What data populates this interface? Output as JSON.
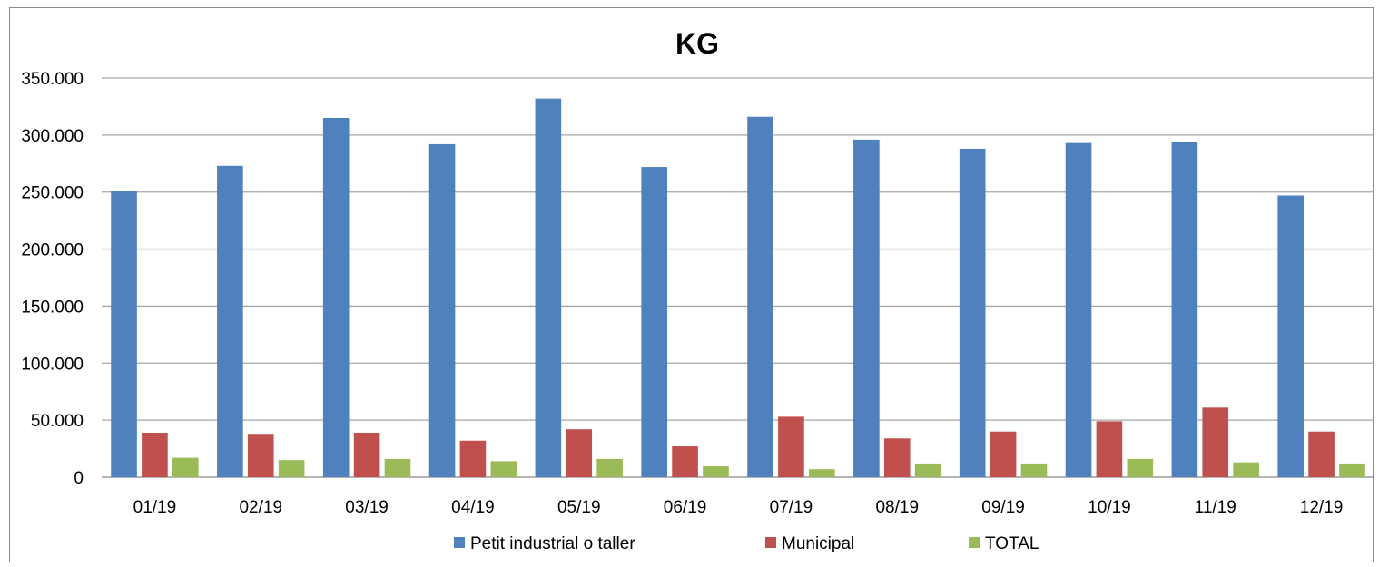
{
  "chart_data": {
    "type": "bar",
    "title": "KG",
    "xlabel": "",
    "ylabel": "",
    "categories": [
      "01/19",
      "02/19",
      "03/19",
      "04/19",
      "05/19",
      "06/19",
      "07/19",
      "08/19",
      "09/19",
      "10/19",
      "11/19",
      "12/19"
    ],
    "series": [
      {
        "name": "Petit industrial o taller",
        "color": "#4f81bd",
        "values": [
          251000,
          273000,
          315000,
          292000,
          332000,
          272000,
          316000,
          296000,
          288000,
          293000,
          294000,
          247000
        ]
      },
      {
        "name": "Municipal",
        "color": "#c0504d",
        "values": [
          39000,
          38000,
          39000,
          32000,
          42000,
          27000,
          53000,
          34000,
          40000,
          49000,
          61000,
          40000
        ]
      },
      {
        "name": "TOTAL",
        "color": "#9bbb59",
        "values": [
          17000,
          15000,
          16000,
          14000,
          16000,
          9500,
          7000,
          12000,
          12000,
          16000,
          13000,
          12000
        ]
      }
    ],
    "ylim": [
      0,
      350000
    ],
    "yticks": [
      0,
      50000,
      100000,
      150000,
      200000,
      250000,
      300000,
      350000
    ],
    "ytick_labels": [
      "0",
      "50.000",
      "100.000",
      "150.000",
      "200.000",
      "250.000",
      "300.000",
      "350.000"
    ],
    "grid": true,
    "legend_position": "bottom"
  }
}
